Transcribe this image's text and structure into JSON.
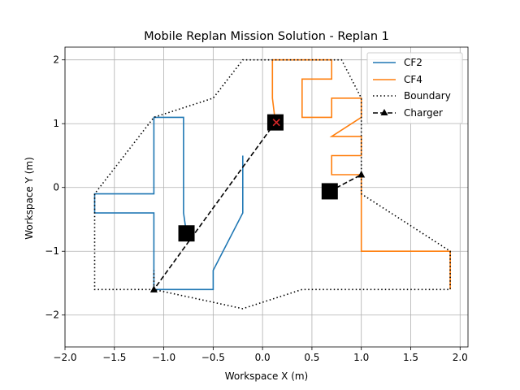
{
  "chart_data": {
    "type": "line",
    "title": "Mobile Replan Mission Solution - Replan 1",
    "xlabel": "Workspace X (m)",
    "ylabel": "Workspace Y (m)",
    "xlim": [
      -2.0,
      2.08
    ],
    "ylim": [
      -2.5,
      2.2
    ],
    "xticks": [
      -2.0,
      -1.5,
      -1.0,
      -0.5,
      0.0,
      0.5,
      1.0,
      1.5,
      2.0
    ],
    "xtick_labels": [
      "−2.0",
      "−1.5",
      "−1.0",
      "−0.5",
      "0.0",
      "0.5",
      "1.0",
      "1.5",
      "2.0"
    ],
    "yticks": [
      -2,
      -1,
      0,
      1,
      2
    ],
    "ytick_labels": [
      "−2",
      "−1",
      "0",
      "1",
      "2"
    ],
    "grid": true,
    "legend_position": "top-right",
    "series": [
      {
        "name": "CF2",
        "color": "#1f77b4",
        "style": "solid",
        "points": [
          [
            -0.2,
            0.5
          ],
          [
            -0.2,
            -0.4
          ],
          [
            -0.5,
            -1.3
          ],
          [
            -0.5,
            -1.6
          ],
          [
            -1.1,
            -1.6
          ],
          [
            -1.1,
            -0.4
          ],
          [
            -1.7,
            -0.4
          ],
          [
            -1.7,
            -0.1
          ],
          [
            -1.1,
            -0.1
          ],
          [
            -1.1,
            1.1
          ],
          [
            -0.8,
            1.1
          ],
          [
            -0.8,
            -0.4
          ],
          [
            -0.77,
            -0.72
          ]
        ]
      },
      {
        "name": "CF4",
        "color": "#ff7f0e",
        "style": "solid",
        "points": [
          [
            0.13,
            1.02
          ],
          [
            0.1,
            1.4
          ],
          [
            0.1,
            2.0
          ],
          [
            0.7,
            2.0
          ],
          [
            0.7,
            1.7
          ],
          [
            0.4,
            1.7
          ],
          [
            0.4,
            1.1
          ],
          [
            0.7,
            1.1
          ],
          [
            0.7,
            1.4
          ],
          [
            1.0,
            1.4
          ],
          [
            1.0,
            1.1
          ],
          [
            0.7,
            0.8
          ],
          [
            1.0,
            0.8
          ],
          [
            1.0,
            0.5
          ],
          [
            0.7,
            0.5
          ],
          [
            0.7,
            0.2
          ],
          [
            1.0,
            0.2
          ],
          [
            1.0,
            -1.0
          ],
          [
            1.9,
            -1.0
          ],
          [
            1.9,
            -1.6
          ]
        ]
      },
      {
        "name": "Boundary",
        "color": "#000000",
        "style": "dotted",
        "points": [
          [
            -1.1,
            -1.6
          ],
          [
            -1.7,
            -1.6
          ],
          [
            -1.7,
            -1.2
          ],
          [
            -1.7,
            -0.4
          ],
          [
            -1.7,
            -0.1
          ],
          [
            -1.1,
            1.1
          ],
          [
            -0.5,
            1.4
          ],
          [
            -0.2,
            2.0
          ],
          [
            0.8,
            2.0
          ],
          [
            1.0,
            1.4
          ],
          [
            1.0,
            -0.1
          ],
          [
            1.9,
            -1.0
          ],
          [
            1.9,
            -1.6
          ],
          [
            0.4,
            -1.6
          ],
          [
            -0.2,
            -1.9
          ],
          [
            -1.1,
            -1.6
          ],
          [
            -1.1,
            -1.3
          ]
        ]
      },
      {
        "name": "Charger",
        "color": "#000000",
        "style": "dashed",
        "marker": "triangle",
        "segments": [
          [
            [
              0.13,
              1.02
            ],
            [
              -1.1,
              -1.6
            ]
          ],
          [
            [
              0.68,
              -0.06
            ],
            [
              1.0,
              0.2
            ]
          ]
        ]
      }
    ],
    "square_markers": [
      [
        0.13,
        1.02
      ],
      [
        -0.77,
        -0.72
      ],
      [
        0.68,
        -0.06
      ]
    ],
    "red_x_marker": [
      0.14,
      1.02
    ],
    "triangle_markers": [
      [
        -1.1,
        -1.6
      ],
      [
        1.0,
        0.2
      ]
    ]
  }
}
